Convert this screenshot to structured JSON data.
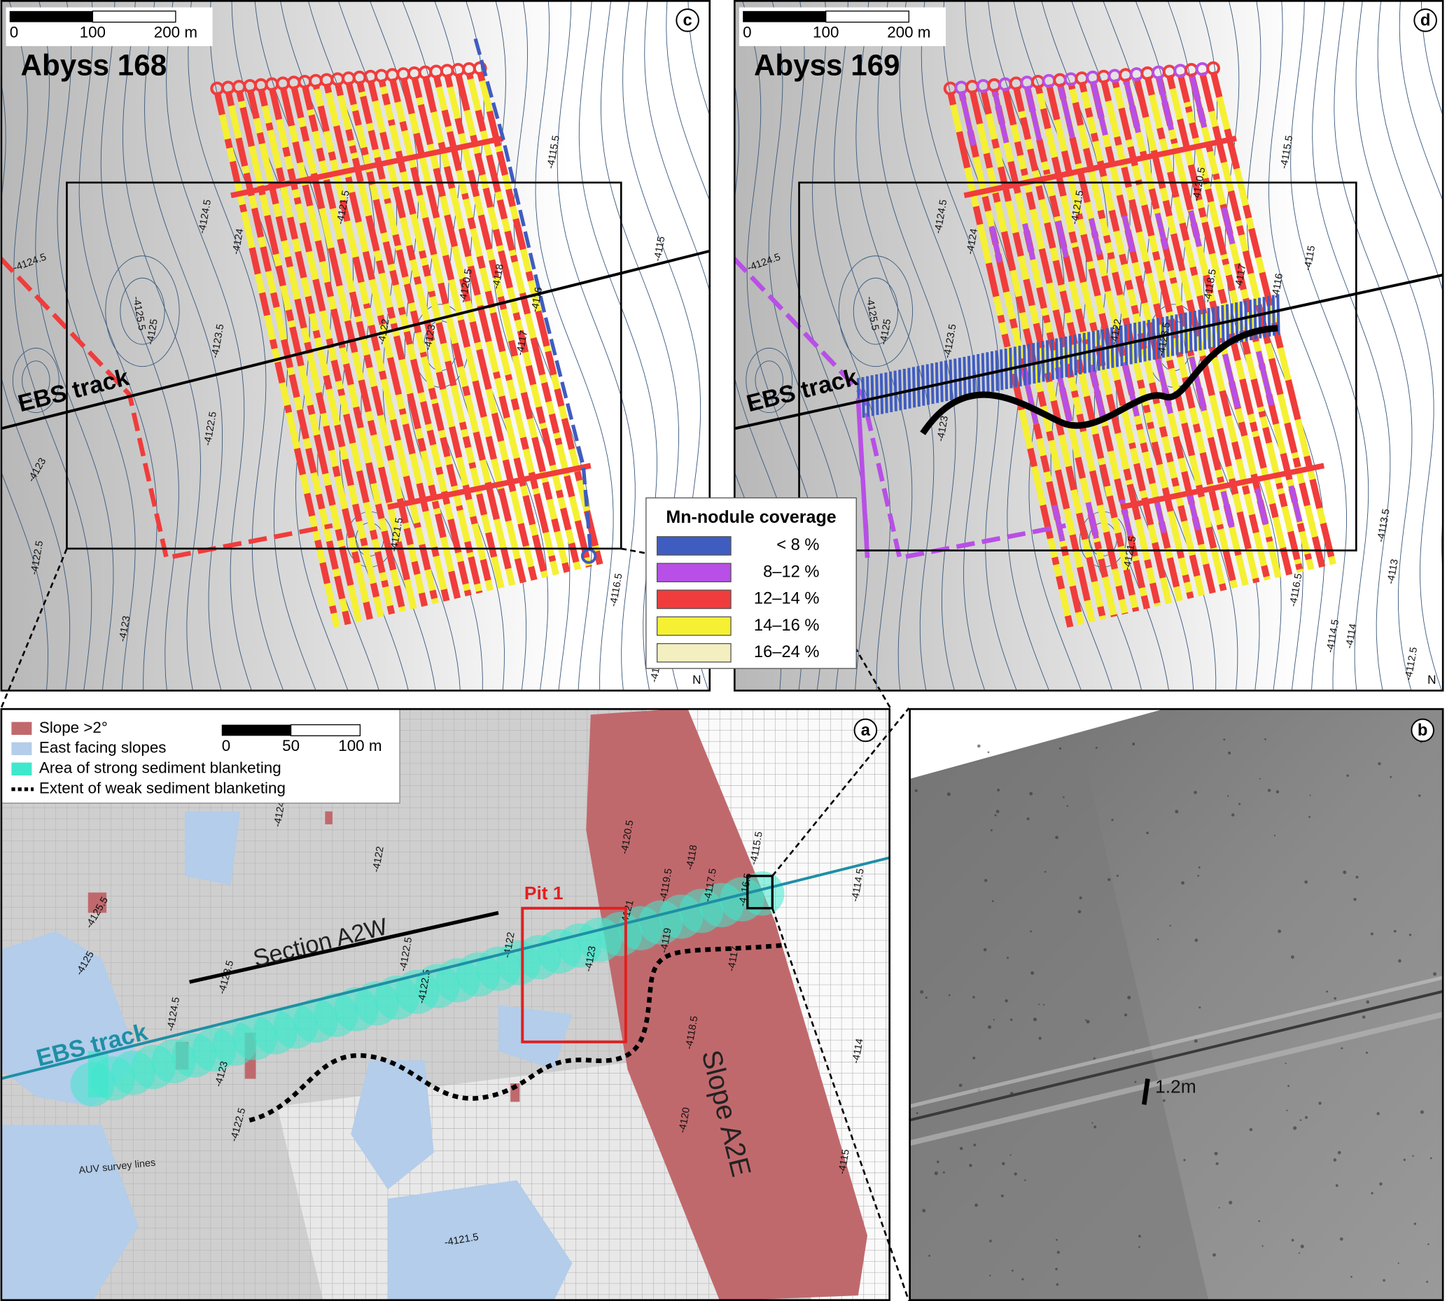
{
  "panel_c": {
    "label": "c",
    "title": "Abyss 168",
    "track_label": "EBS track",
    "north": "N",
    "scale_bar": [
      "0",
      "100",
      "200 m"
    ],
    "contour_labels": [
      "-4124.5",
      "-4125.5",
      "-4125",
      "-4123.5",
      "-4122.5",
      "-4123",
      "-4122.5",
      "-4123",
      "-4124",
      "-4124.5",
      "-4121.5",
      "-4120.5",
      "-4118",
      "-4117",
      "-4116",
      "-4115.5",
      "-4115",
      "-4116.5",
      "-4114.5",
      "-4114",
      "-4122",
      "-4123",
      "-4121.5"
    ]
  },
  "panel_d": {
    "label": "d",
    "title": "Abyss 169",
    "track_label": "EBS track",
    "north": "N",
    "scale_bar": [
      "0",
      "100",
      "200 m"
    ],
    "contour_labels": [
      "-4124.5",
      "-4125.5",
      "-4125",
      "-4123.5",
      "-4123",
      "-4124.5",
      "-4124",
      "-4121.5",
      "-4120.5",
      "-4118.5",
      "-4117",
      "-4116",
      "-4115.5",
      "-4115",
      "-4116.5",
      "-4114.5",
      "-4114",
      "-4113.5",
      "-4113",
      "-4112.5",
      "-4122",
      "-4123.5",
      "-4121.5"
    ]
  },
  "legend": {
    "title": "Mn-nodule coverage",
    "items": [
      {
        "label": "< 8 %",
        "color": "#3f5cc0"
      },
      {
        "label": "8–12 %",
        "color": "#b84fe6"
      },
      {
        "label": "12–14 %",
        "color": "#f03c3c"
      },
      {
        "label": "14–16 %",
        "color": "#f5f032"
      },
      {
        "label": "16–24 %",
        "color": "#f3efc0"
      }
    ]
  },
  "panel_a": {
    "label": "a",
    "legend": [
      {
        "label": "Slope >2°",
        "color": "#c0696d"
      },
      {
        "label": "East facing slopes",
        "color": "#b3cdea"
      },
      {
        "label": "Area of strong sediment blanketing",
        "color": "#3fe8cc"
      },
      {
        "label": "Extent of weak sediment blanketing",
        "color": "#000000"
      }
    ],
    "scale_bar": [
      "0",
      "50",
      "100 m"
    ],
    "section_label": "Section A2W",
    "track_label": "EBS track",
    "pit_label": "Pit 1",
    "slope_label": "Slope A2E",
    "auv_label": "AUV survey lines",
    "contour_labels": [
      "-4125.5",
      "-4125",
      "-4124.5",
      "-4123.5",
      "-4123",
      "-4122.5",
      "-4122",
      "-4122.5",
      "-4122",
      "-4122.5",
      "-4123",
      "-4120.5",
      "-4121",
      "-4119.5",
      "-4118",
      "-4117.5",
      "-4119",
      "-4117",
      "-4118.5",
      "-4120",
      "-4116.5",
      "-4115.5",
      "-4114.5",
      "-4114",
      "-4115",
      "-4121.5",
      "-4124"
    ]
  },
  "panel_b": {
    "label": "b",
    "scale_label": "1.2m"
  }
}
